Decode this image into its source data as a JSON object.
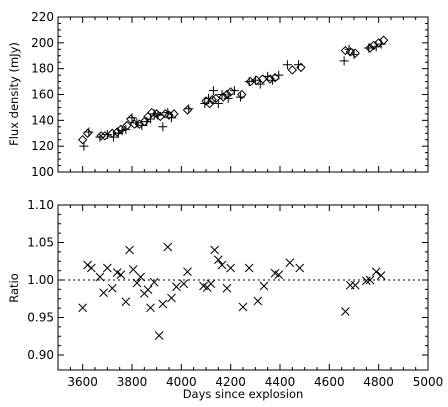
{
  "chart_data": [
    {
      "type": "scatter",
      "ylabel": "Flux density (mJy)",
      "xlabel": "",
      "xlim": [
        3500,
        5000
      ],
      "ylim": [
        100,
        220
      ],
      "xticks": [
        3600,
        3800,
        4000,
        4200,
        4400,
        4600,
        4800,
        5000
      ],
      "yticks": [
        100,
        120,
        140,
        160,
        180,
        200,
        220
      ],
      "xtick_labels_shown": false,
      "series": [
        {
          "marker": "diamond",
          "x": [
            3600,
            3620,
            3675,
            3690,
            3720,
            3740,
            3755,
            3780,
            3795,
            3810,
            3830,
            3850,
            3865,
            3880,
            3900,
            3915,
            3935,
            3950,
            3970,
            4025,
            4100,
            4115,
            4125,
            4140,
            4170,
            4185,
            4200,
            4245,
            4280,
            4305,
            4330,
            4360,
            4380,
            4450,
            4485,
            4665,
            4685,
            4705,
            4765,
            4780,
            4800,
            4820
          ],
          "y": [
            125,
            130,
            128,
            128,
            130,
            131,
            133,
            136,
            141,
            137,
            137,
            139,
            143,
            146,
            145,
            143,
            145,
            144,
            145,
            148,
            155,
            153,
            156,
            157,
            158,
            160,
            162,
            160,
            170,
            171,
            172,
            172,
            173,
            179,
            181,
            194,
            193,
            192,
            196,
            198,
            200,
            202
          ]
        },
        {
          "marker": "plus",
          "x": [
            3605,
            3625,
            3670,
            3700,
            3725,
            3745,
            3760,
            3775,
            3800,
            3820,
            3840,
            3860,
            3875,
            3890,
            3905,
            3925,
            3945,
            3960,
            4030,
            4095,
            4110,
            4130,
            4150,
            4165,
            4190,
            4215,
            4240,
            4275,
            4300,
            4320,
            4350,
            4370,
            4395,
            4430,
            4475,
            4660,
            4680,
            4700,
            4760,
            4790,
            4810
          ],
          "y": [
            120,
            131,
            127,
            129,
            127,
            130,
            132,
            133,
            142,
            138,
            136,
            139,
            141,
            145,
            144,
            135,
            146,
            142,
            149,
            153,
            157,
            163,
            153,
            160,
            157,
            163,
            158,
            170,
            171,
            168,
            174,
            171,
            175,
            183,
            183,
            186,
            195,
            191,
            196,
            197,
            199
          ]
        }
      ]
    },
    {
      "type": "scatter",
      "ylabel": "Ratio",
      "xlabel": "Days since explosion",
      "xlim": [
        3500,
        5000
      ],
      "ylim": [
        0.88,
        1.1
      ],
      "xticks": [
        3600,
        3800,
        4000,
        4200,
        4400,
        4600,
        4800,
        5000
      ],
      "yticks": [
        0.9,
        0.95,
        1.0,
        1.05,
        1.1
      ],
      "reference_line": 1.0,
      "series": [
        {
          "marker": "cross",
          "x": [
            3600,
            3620,
            3635,
            3670,
            3685,
            3700,
            3720,
            3740,
            3755,
            3775,
            3790,
            3805,
            3820,
            3835,
            3850,
            3865,
            3875,
            3890,
            3910,
            3925,
            3945,
            3960,
            3980,
            4010,
            4025,
            4090,
            4105,
            4120,
            4135,
            4150,
            4165,
            4185,
            4200,
            4250,
            4275,
            4310,
            4335,
            4380,
            4395,
            4440,
            4480,
            4665,
            4685,
            4705,
            4750,
            4765,
            4790,
            4810
          ],
          "y": [
            0.963,
            1.02,
            1.016,
            1.004,
            0.983,
            1.016,
            0.989,
            1.01,
            1.007,
            0.971,
            1.04,
            1.014,
            0.996,
            1.004,
            0.982,
            0.987,
            0.963,
            0.997,
            0.926,
            0.968,
            1.044,
            0.976,
            0.991,
            0.995,
            1.011,
            0.992,
            0.99,
            0.995,
            1.04,
            1.027,
            1.02,
            0.989,
            1.016,
            0.964,
            1.016,
            0.972,
            0.992,
            1.009,
            1.007,
            1.023,
            1.016,
            0.958,
            0.993,
            0.993,
            0.999,
            1.0,
            1.011,
            1.006
          ]
        }
      ]
    }
  ]
}
